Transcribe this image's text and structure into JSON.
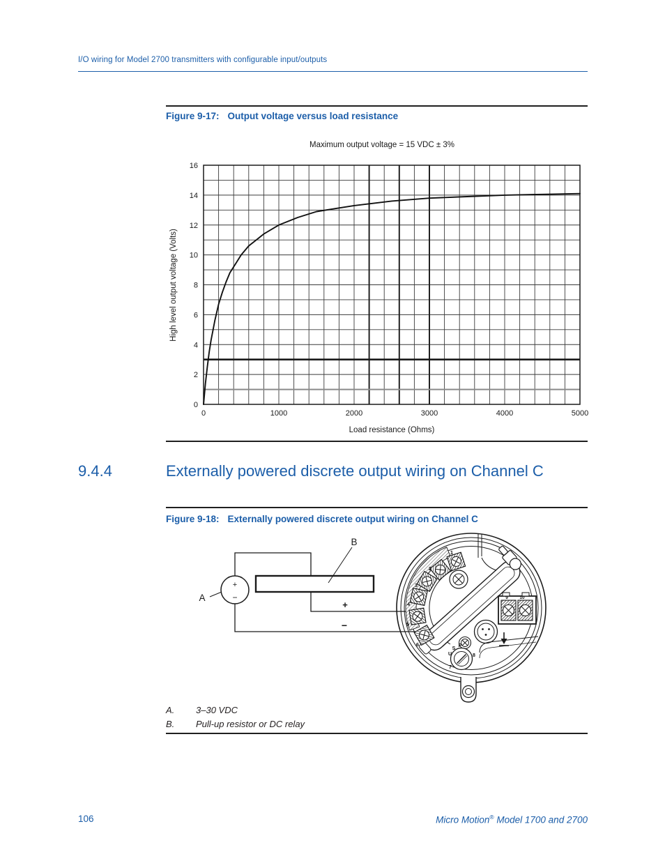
{
  "colors": {
    "heading_blue": "#1c5ea9",
    "text_black": "#231f20",
    "line_black": "#1f1f1f",
    "gray_line": "#8a8a8a"
  },
  "header": {
    "text": "I/O wiring for Model 2700 transmitters with configurable input/outputs"
  },
  "figure_9_17": {
    "label": "Figure 9-17:",
    "title": "Output voltage versus load resistance"
  },
  "chart_data": {
    "type": "line",
    "title": "Maximum output voltage = 15 VDC ± 3%",
    "xlabel": "Load resistance (Ohms)",
    "ylabel": "High level output voltage (Volts)",
    "xlim": [
      0,
      5000
    ],
    "ylim": [
      0,
      16
    ],
    "x_ticks": [
      0,
      1000,
      2000,
      3000,
      4000,
      5000
    ],
    "y_ticks": [
      0,
      2,
      4,
      6,
      8,
      10,
      12,
      14,
      16
    ],
    "grid": {
      "on": true,
      "x_step": 200,
      "y_step": 1,
      "emphasized_hlines": [
        {
          "y": 1,
          "color": "#8a8a8a",
          "width": 2
        },
        {
          "y": 3,
          "color": "#1a1a1a",
          "width": 2.6
        }
      ],
      "emphasized_vlines": [
        {
          "x": 2200,
          "color": "#222222",
          "width": 2
        },
        {
          "x": 2600,
          "color": "#222222",
          "width": 2
        },
        {
          "x": 3000,
          "color": "#222222",
          "width": 2
        }
      ]
    },
    "legend": "none",
    "series": [
      {
        "name": "High level output voltage",
        "x": [
          0,
          25,
          50,
          75,
          100,
          150,
          200,
          250,
          300,
          350,
          400,
          500,
          600,
          700,
          800,
          900,
          1000,
          1250,
          1500,
          1750,
          2000,
          2500,
          3000,
          3500,
          4000,
          4500,
          5000
        ],
        "y": [
          0,
          1.4,
          2.5,
          3.5,
          4.3,
          5.6,
          6.7,
          7.5,
          8.2,
          8.8,
          9.2,
          10.0,
          10.6,
          11.0,
          11.4,
          11.7,
          12.0,
          12.5,
          12.9,
          13.1,
          13.3,
          13.6,
          13.8,
          13.9,
          14.0,
          14.05,
          14.1
        ]
      }
    ]
  },
  "section": {
    "number": "9.4.4",
    "title": "Externally powered discrete output wiring on Channel C"
  },
  "figure_9_18": {
    "label": "Figure 9-18:",
    "title": "Externally powered discrete output wiring on Channel C",
    "diagram": {
      "callout_a": "A",
      "callout_b": "B",
      "wire_plus": "+",
      "wire_minus": "−",
      "source_plus": "+",
      "source_minus": "−",
      "terminal_numbers": [
        "1",
        "2",
        "3",
        "4",
        "5",
        "6"
      ],
      "power_terminal_numbers": [
        "9",
        "10"
      ],
      "selector_letters": [
        "U",
        "S",
        "P",
        "8",
        "7"
      ]
    },
    "notes": [
      {
        "key": "A.",
        "text": "3–30 VDC"
      },
      {
        "key": "B.",
        "text": "Pull-up resistor or DC relay"
      }
    ]
  },
  "footer": {
    "page_number": "106",
    "doc_title": "Micro Motion",
    "registered_mark": "®",
    "doc_title_suffix": " Model 1700 and 2700"
  }
}
